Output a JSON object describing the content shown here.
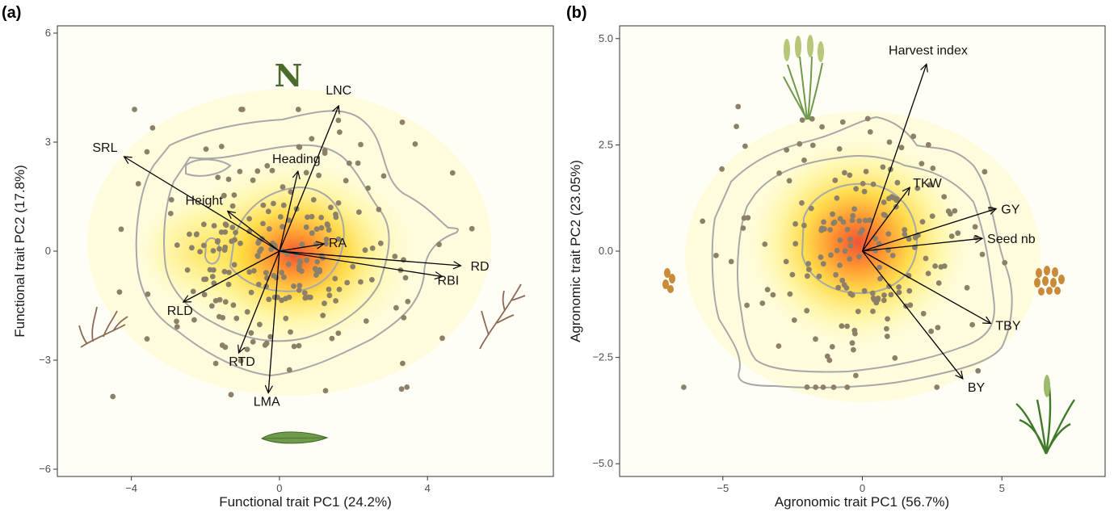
{
  "panels": [
    {
      "id": "a",
      "label": "(a)",
      "xlabel": "Functional trait PC1 (24.2%)",
      "ylabel": "Functional trait PC2 (17.8%)",
      "xlim": [
        -6.0,
        7.4
      ],
      "ylim": [
        -6.2,
        6.2
      ],
      "xticks": [
        -4,
        0,
        4
      ],
      "yticks": [
        -6,
        -3,
        0,
        3,
        6
      ],
      "annotation": "N"
    },
    {
      "id": "b",
      "label": "(b)",
      "xlabel": "Agronomic trait PC1 (56.7%)",
      "ylabel": "Agronomic trait PC2 (23.05%)",
      "xlim": [
        -8.7,
        8.7
      ],
      "ylim": [
        -5.3,
        5.3
      ],
      "xticks": [
        -5,
        0,
        5
      ],
      "yticks": [
        -5.0,
        -2.5,
        0.0,
        2.5,
        5.0
      ]
    }
  ],
  "chart_data": [
    {
      "type": "scatter",
      "subtype": "pca-biplot",
      "panel": "(a)",
      "xlabel": "Functional trait PC1 (24.2%)",
      "ylabel": "Functional trait PC2 (17.8%)",
      "xlim": [
        -6.0,
        7.4
      ],
      "ylim": [
        -6.2,
        6.2
      ],
      "grid": false,
      "density_colors": [
        "#fffde6",
        "#fff27a",
        "#ffd21f",
        "#ff8a1e",
        "#f04a2c"
      ],
      "loadings": [
        {
          "name": "LNC",
          "x": 1.6,
          "y": 4.0
        },
        {
          "name": "SRL",
          "x": -4.2,
          "y": 2.6
        },
        {
          "name": "Heading",
          "x": 0.5,
          "y": 2.2
        },
        {
          "name": "Height",
          "x": -1.4,
          "y": 1.1
        },
        {
          "name": "RA",
          "x": 1.2,
          "y": 0.2
        },
        {
          "name": "RD",
          "x": 4.9,
          "y": -0.4
        },
        {
          "name": "RBI",
          "x": 4.4,
          "y": -0.7
        },
        {
          "name": "RLD",
          "x": -2.6,
          "y": -1.4
        },
        {
          "name": "RTD",
          "x": -1.1,
          "y": -2.8
        },
        {
          "name": "LMA",
          "x": -0.3,
          "y": -3.9
        }
      ]
    },
    {
      "type": "scatter",
      "subtype": "pca-biplot",
      "panel": "(b)",
      "xlabel": "Agronomic trait PC1 (56.7%)",
      "ylabel": "Agronomic trait PC2 (23.05%)",
      "xlim": [
        -8.7,
        8.7
      ],
      "ylim": [
        -5.3,
        5.3
      ],
      "grid": false,
      "density_colors": [
        "#fffde6",
        "#fff27a",
        "#ffd21f",
        "#ff8a1e",
        "#f04a2c"
      ],
      "loadings": [
        {
          "name": "Harvest index",
          "x": 2.3,
          "y": 4.4
        },
        {
          "name": "TKW",
          "x": 1.7,
          "y": 1.5
        },
        {
          "name": "GY",
          "x": 4.8,
          "y": 1.0
        },
        {
          "name": "Seed nb",
          "x": 4.3,
          "y": 0.3
        },
        {
          "name": "TBY",
          "x": 4.6,
          "y": -1.7
        },
        {
          "name": "BY",
          "x": 3.6,
          "y": -3.0
        }
      ]
    }
  ],
  "icons": [
    "root-icon",
    "leaf-icon",
    "wheat-spike-icon",
    "wheat-plant-icon",
    "grain-icon"
  ]
}
